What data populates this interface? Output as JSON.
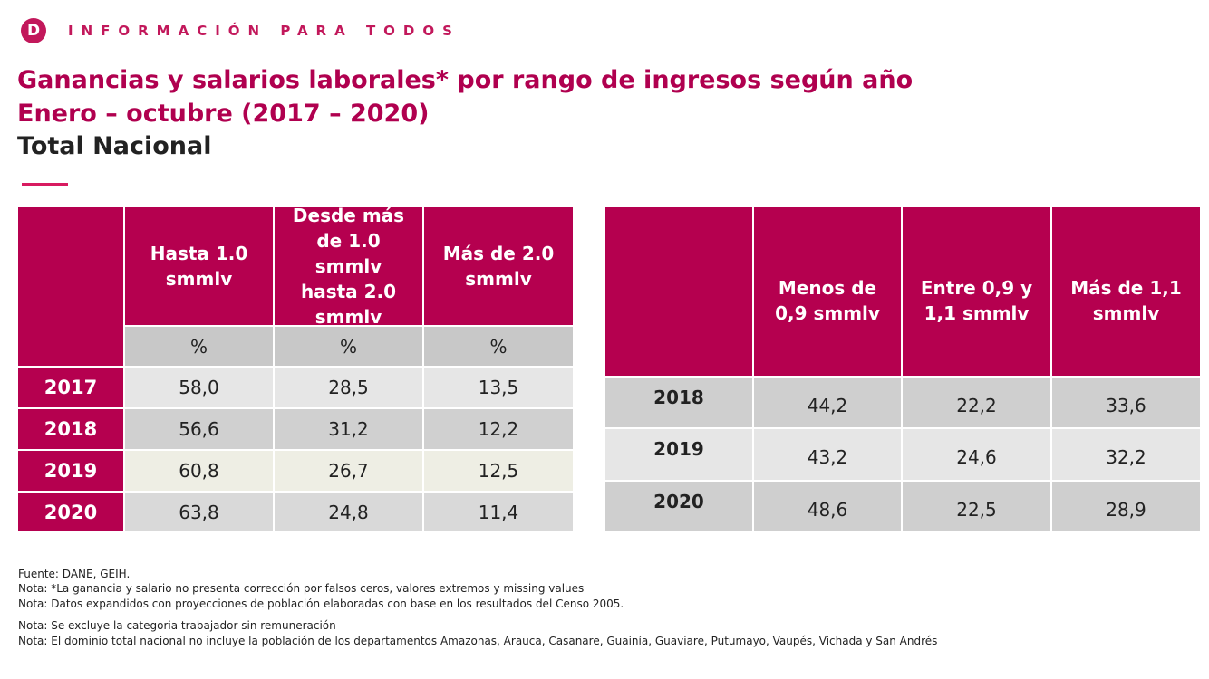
{
  "header": {
    "logo": "D",
    "brand": "INFORMACIÓN PARA TODOS"
  },
  "title": {
    "line1": "Ganancias y salarios laborales* por rango de ingresos según año",
    "line2": "Enero – octubre (2017 – 2020)",
    "line3": "Total Nacional"
  },
  "table_left": {
    "columns": [
      "Hasta 1.0 smmlv",
      "Desde más de 1.0 smmlv hasta 2.0 smmlv",
      "Más de 2.0 smmlv"
    ],
    "units": [
      "%",
      "%",
      "%"
    ],
    "rows": [
      [
        "2017",
        "58,0",
        "28,5",
        "13,5"
      ],
      [
        "2018",
        "56,6",
        "31,2",
        "12,2"
      ],
      [
        "2019",
        "60,8",
        "26,7",
        "12,5"
      ],
      [
        "2020",
        "63,8",
        "24,8",
        "11,4"
      ]
    ]
  },
  "table_right": {
    "columns": [
      "Menos de 0,9 smmlv",
      "Entre 0,9 y 1,1 smmlv",
      "Más de 1,1 smmlv"
    ],
    "rows": [
      [
        "2018",
        "44,2",
        "22,2",
        "33,6"
      ],
      [
        "2019",
        "43,2",
        "24,6",
        "32,2"
      ],
      [
        "2020",
        "48,6",
        "22,5",
        "28,9"
      ]
    ]
  },
  "notes": [
    "Fuente: DANE, GEIH.",
    "Nota: *La ganancia y salario no presenta corrección por falsos ceros, valores extremos y missing values",
    "Nota: Datos expandidos con proyecciones de población elaboradas con base en los resultados del Censo 2005.",
    "Nota: Se excluye la categoria trabajador sin remuneración",
    "Nota: El dominio total nacional no incluye la población de los departamentos Amazonas, Arauca, Casanare, Guainía, Guaviare, Putumayo, Vaupés, Vichada y San Andrés"
  ]
}
